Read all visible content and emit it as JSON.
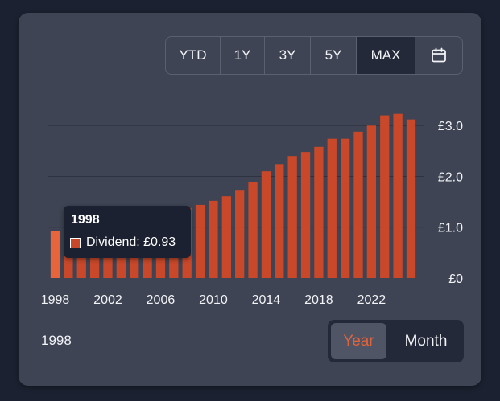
{
  "range_buttons": [
    {
      "label": "YTD",
      "active": false
    },
    {
      "label": "1Y",
      "active": false
    },
    {
      "label": "3Y",
      "active": false
    },
    {
      "label": "5Y",
      "active": false
    },
    {
      "label": "MAX",
      "active": true
    }
  ],
  "calendar_icon": "calendar-icon",
  "tooltip": {
    "year": "1998",
    "label": "Dividend: £0.93"
  },
  "selected_year": "1998",
  "toggle": {
    "year_label": "Year",
    "month_label": "Month",
    "active": "Year"
  },
  "colors": {
    "bar": "#c9482a",
    "bar_highlight": "#e8643b",
    "card": "#3e4453",
    "background": "#1b2130",
    "active_accent": "#e2643b"
  },
  "chart_data": {
    "type": "bar",
    "x_ticks": [
      "1998",
      "2002",
      "2006",
      "2010",
      "2014",
      "2018",
      "2022"
    ],
    "y_ticks": [
      "£0",
      "£1.0",
      "£2.0",
      "£3.0"
    ],
    "ylim": [
      0,
      3.0
    ],
    "grid": true,
    "highlighted_category": "1998",
    "categories": [
      "1998",
      "1999",
      "2000",
      "2001",
      "2002",
      "2003",
      "2004",
      "2005",
      "2006",
      "2007",
      "2008",
      "2009",
      "2010",
      "2011",
      "2012",
      "2013",
      "2014",
      "2015",
      "2016",
      "2017",
      "2018",
      "2019",
      "2020",
      "2021",
      "2022",
      "2023",
      "2024",
      "2025"
    ],
    "series": [
      {
        "values": [
          0.93,
          0.96,
          1.0,
          1.03,
          1.06,
          1.1,
          1.14,
          1.18,
          1.23,
          1.3,
          1.38,
          1.44,
          1.52,
          1.61,
          1.72,
          1.89,
          2.1,
          2.24,
          2.4,
          2.48,
          2.58,
          2.74,
          2.74,
          2.88,
          3.0,
          3.2,
          3.23,
          3.12
        ]
      }
    ]
  }
}
